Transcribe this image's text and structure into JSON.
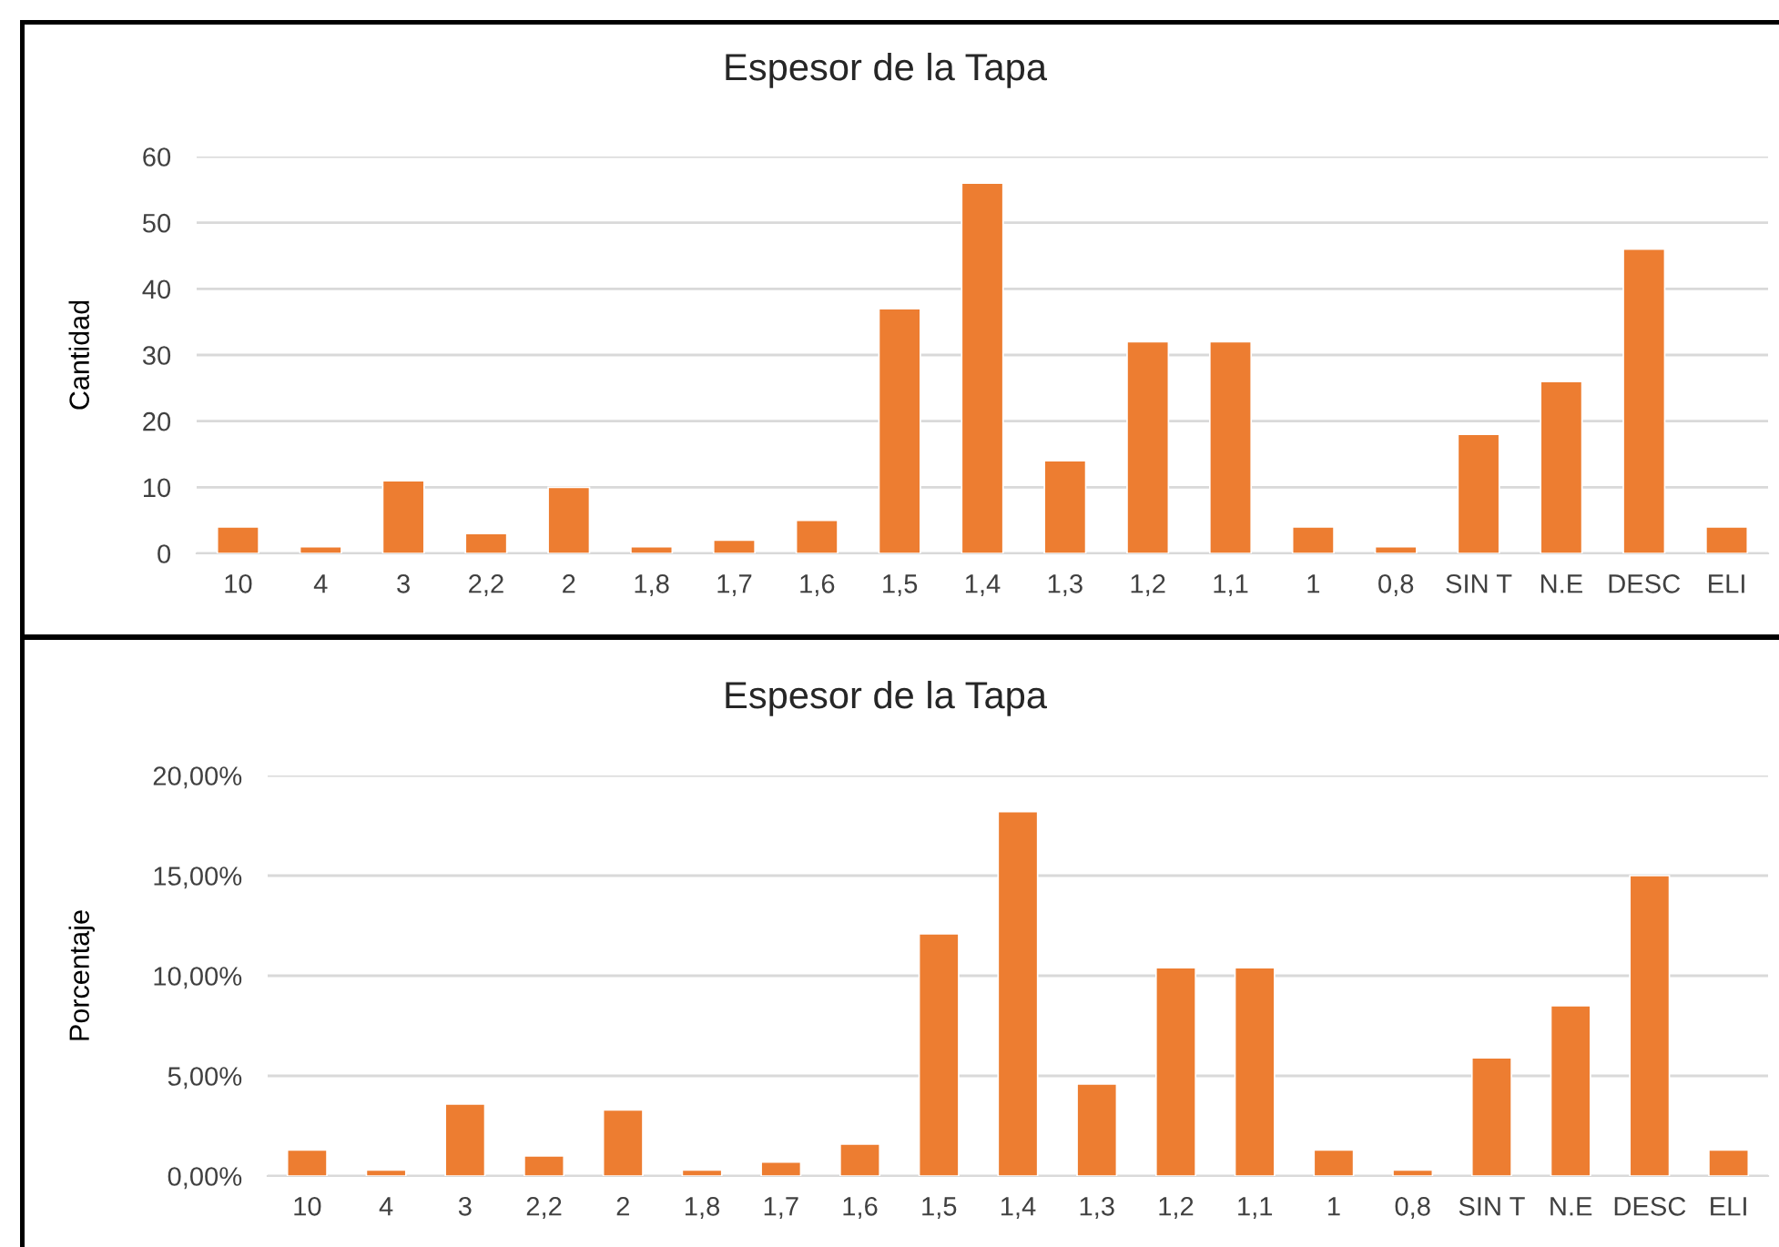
{
  "chart_data": [
    {
      "type": "bar",
      "title": "Espesor de la Tapa",
      "ylabel": "Cantidad",
      "categories": [
        "10",
        "4",
        "3",
        "2,2",
        "2",
        "1,8",
        "1,7",
        "1,6",
        "1,5",
        "1,4",
        "1,3",
        "1,2",
        "1,1",
        "1",
        "0,8",
        "SIN T",
        "N.E",
        "DESC",
        "ELI"
      ],
      "values": [
        4,
        1,
        11,
        3,
        10,
        1,
        2,
        5,
        37,
        56,
        14,
        32,
        32,
        4,
        1,
        18,
        26,
        46,
        4
      ],
      "color": "#ed7d31",
      "ylim": [
        0,
        60
      ],
      "yticks": [
        0,
        10,
        20,
        30,
        40,
        50,
        60
      ],
      "grid": "y"
    },
    {
      "type": "bar",
      "title": "Espesor de la Tapa",
      "ylabel": "Porcentaje",
      "categories": [
        "10",
        "4",
        "3",
        "2,2",
        "2",
        "1,8",
        "1,7",
        "1,6",
        "1,5",
        "1,4",
        "1,3",
        "1,2",
        "1,1",
        "1",
        "0,8",
        "SIN T",
        "N.E",
        "DESC",
        "ELI"
      ],
      "values": [
        1.3,
        0.3,
        3.6,
        1.0,
        3.3,
        0.3,
        0.7,
        1.6,
        12.1,
        18.2,
        4.6,
        10.4,
        10.4,
        1.3,
        0.3,
        5.9,
        8.5,
        15.0,
        1.3
      ],
      "color": "#ed7d31",
      "ylim": [
        0,
        20
      ],
      "yticks": [
        {
          "value": 0,
          "label": "0,00%"
        },
        {
          "value": 5,
          "label": "5,00%"
        },
        {
          "value": 10,
          "label": "10,00%"
        },
        {
          "value": 15,
          "label": "15,00%"
        },
        {
          "value": 20,
          "label": "20,00%"
        }
      ],
      "grid": "y"
    }
  ]
}
